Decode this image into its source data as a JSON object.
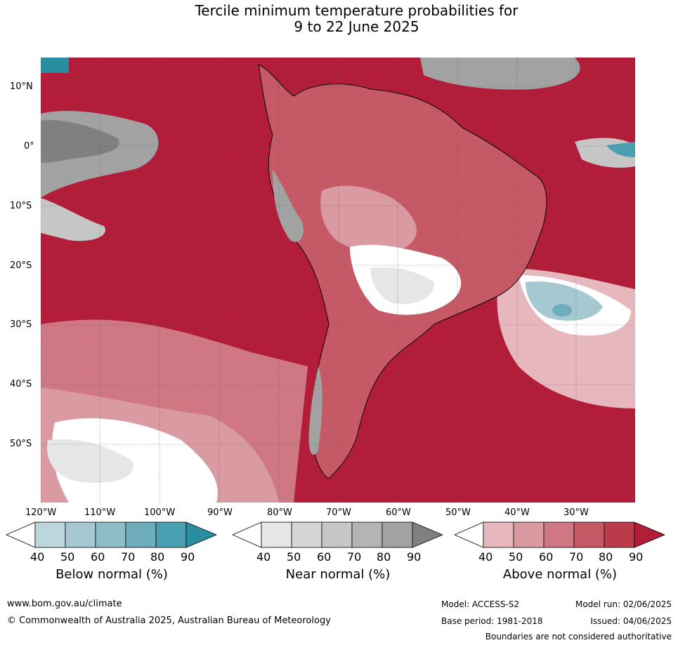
{
  "title": {
    "line1": "Tercile minimum temperature probabilities for",
    "line2": "9 to 22 June 2025"
  },
  "map": {
    "lat_labels": [
      "10°N",
      "0°",
      "10°S",
      "20°S",
      "30°S",
      "40°S",
      "50°S"
    ],
    "lon_labels": [
      "120°W",
      "110°W",
      "100°W",
      "90°W",
      "80°W",
      "70°W",
      "60°W",
      "50°W",
      "40°W",
      "30°W"
    ]
  },
  "legends": [
    {
      "title": "Below normal (%)",
      "ticks": [
        "40",
        "50",
        "60",
        "70",
        "80",
        "90"
      ],
      "colors": [
        "#ffffff",
        "#bdd6dc",
        "#a6c9d1",
        "#8dbcc6",
        "#6eadbb",
        "#4a9fb0",
        "#2a8ea3"
      ]
    },
    {
      "title": "Near normal (%)",
      "ticks": [
        "40",
        "50",
        "60",
        "70",
        "80",
        "90"
      ],
      "colors": [
        "#ffffff",
        "#e6e6e6",
        "#d6d6d6",
        "#c6c6c6",
        "#b4b4b4",
        "#a2a2a2",
        "#808080"
      ]
    },
    {
      "title": "Above normal (%)",
      "ticks": [
        "40",
        "50",
        "60",
        "70",
        "80",
        "90"
      ],
      "colors": [
        "#ffffff",
        "#e6b8bd",
        "#d99aa2",
        "#cf7883",
        "#c55a66",
        "#ba3c4b",
        "#b21e3a"
      ]
    }
  ],
  "footer": {
    "url": "www.bom.gov.au/climate",
    "copyright": "© Commonwealth of Australia 2025, Australian Bureau of Meteorology",
    "model": "Model: ACCESS-S2",
    "base_period": "Base period: 1981-2018",
    "model_run": "Model run: 02/06/2025",
    "issued": "Issued: 04/06/2025",
    "disclaimer": "Boundaries are not considered authoritative"
  }
}
